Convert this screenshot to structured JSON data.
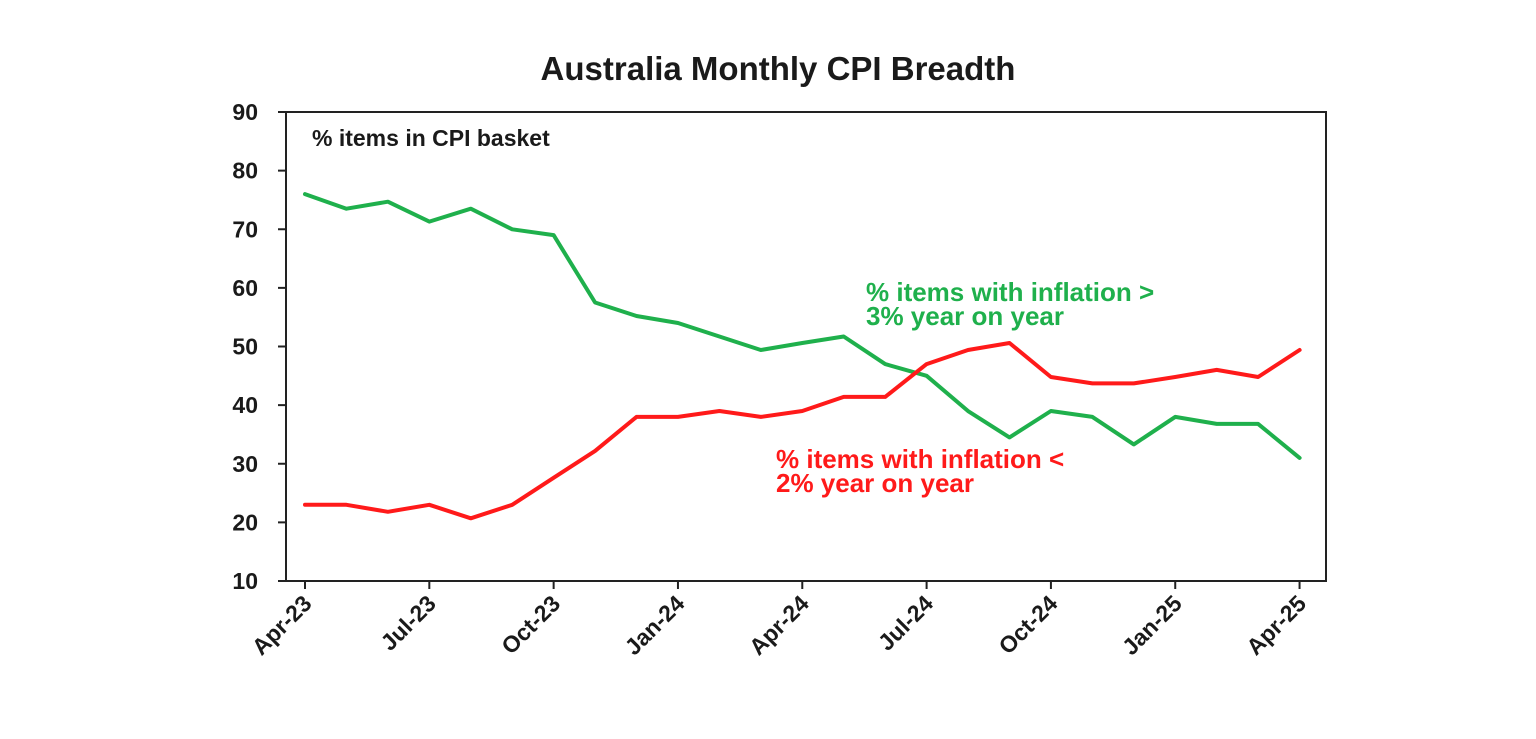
{
  "chart_data": {
    "type": "line",
    "title": "Australia Monthly CPI Breadth",
    "ylabel": "% items in CPI basket",
    "xlabel": "",
    "ylim": [
      10,
      90
    ],
    "yticks": [
      10,
      20,
      30,
      40,
      50,
      60,
      70,
      80,
      90
    ],
    "xtick_labels": [
      "Apr-23",
      "Jul-23",
      "Oct-23",
      "Jan-24",
      "Apr-24",
      "Jul-24",
      "Oct-24",
      "Jan-25",
      "Apr-25"
    ],
    "x": [
      "2023-04",
      "2023-05",
      "2023-06",
      "2023-07",
      "2023-08",
      "2023-09",
      "2023-10",
      "2023-11",
      "2023-12",
      "2024-01",
      "2024-02",
      "2024-03",
      "2024-04",
      "2024-05",
      "2024-06",
      "2024-07",
      "2024-08",
      "2024-09",
      "2024-10",
      "2024-11",
      "2024-12",
      "2025-01",
      "2025-02",
      "2025-03",
      "2025-04"
    ],
    "grid": false,
    "series": [
      {
        "name": "% items with inflation > 3% year on year",
        "color": "#1fb04c",
        "values": [
          76,
          73.5,
          74.7,
          71.3,
          73.5,
          70,
          69,
          57.5,
          55.2,
          54,
          51.7,
          49.4,
          50.6,
          51.7,
          47,
          45,
          39,
          34.5,
          39,
          38,
          33.3,
          38,
          36.8,
          36.8,
          31
        ]
      },
      {
        "name": "% items with inflation < 2% year on year",
        "color": "#ff1a1a",
        "values": [
          23,
          23,
          21.8,
          23,
          20.7,
          23,
          27.6,
          32.2,
          38,
          38,
          39,
          38,
          39,
          41.4,
          41.4,
          47,
          49.4,
          50.6,
          44.8,
          43.7,
          43.7,
          44.8,
          46,
          44.8,
          49.4
        ]
      }
    ],
    "annotations": [
      {
        "series": 0,
        "lines": [
          "% items with inflation >",
          "3% year on year"
        ]
      },
      {
        "series": 1,
        "lines": [
          "% items with inflation <",
          "2% year on year"
        ]
      }
    ]
  }
}
